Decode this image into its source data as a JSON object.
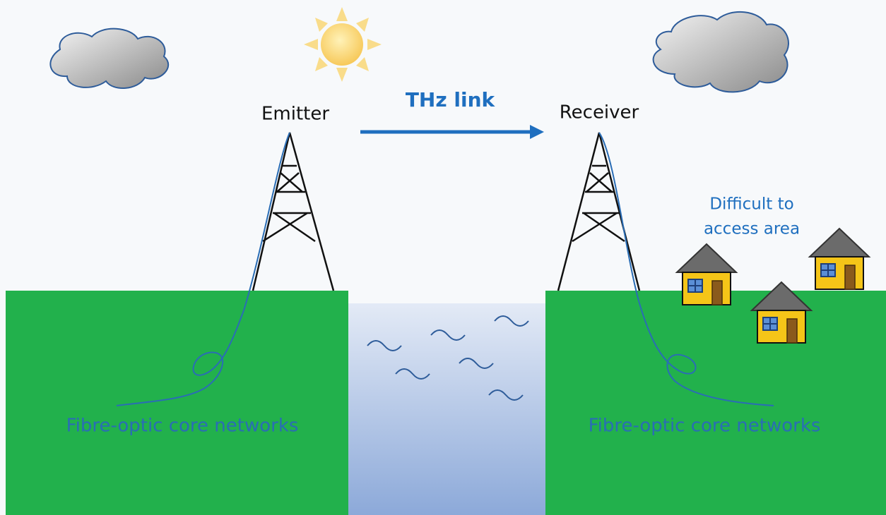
{
  "labels": {
    "emitter": "Emitter",
    "link": "THz link",
    "receiver": "Receiver",
    "area": [
      "Difficult to",
      "access area"
    ],
    "fibre_left": "Fibre-optic core networks",
    "fibre_right": "Fibre-optic core networks"
  }
}
